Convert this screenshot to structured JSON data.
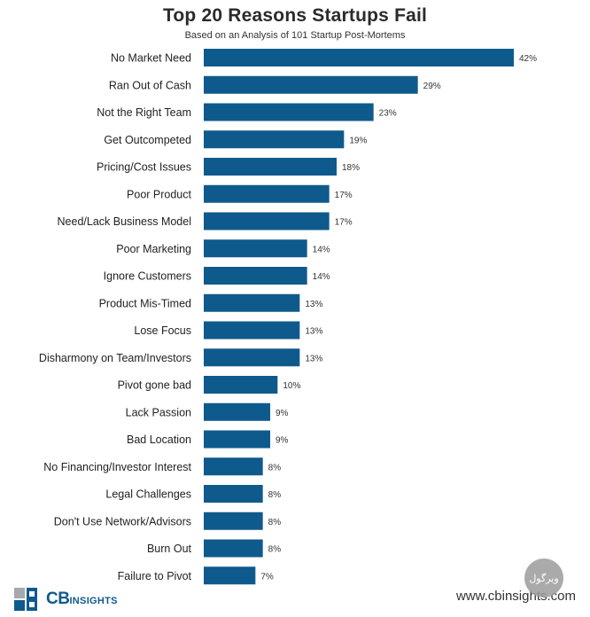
{
  "chart_data": {
    "type": "bar",
    "orientation": "horizontal",
    "title": "Top 20 Reasons Startups Fail",
    "subtitle": "Based on an Analysis of 101 Startup Post-Mortems",
    "categories": [
      "No Market Need",
      "Ran Out of Cash",
      "Not the Right Team",
      "Get Outcompeted",
      "Pricing/Cost Issues",
      "Poor Product",
      "Need/Lack Business Model",
      "Poor Marketing",
      "Ignore Customers",
      "Product Mis-Timed",
      "Lose Focus",
      "Disharmony on Team/Investors",
      "Pivot gone bad",
      "Lack Passion",
      "Bad Location",
      "No Financing/Investor Interest",
      "Legal Challenges",
      "Don't Use Network/Advisors",
      "Burn Out",
      "Failure to Pivot"
    ],
    "values": [
      42,
      29,
      23,
      19,
      18,
      17,
      17,
      14,
      14,
      13,
      13,
      13,
      10,
      9,
      9,
      8,
      8,
      8,
      8,
      7
    ],
    "value_labels": [
      "42%",
      "29%",
      "23%",
      "19%",
      "18%",
      "17%",
      "17%",
      "14%",
      "14%",
      "13%",
      "13%",
      "13%",
      "10%",
      "9%",
      "9%",
      "8%",
      "8%",
      "8%",
      "8%",
      "7%"
    ],
    "xlim": [
      0,
      42
    ],
    "bar_color": "#0f5a8c",
    "grid": false,
    "xlabel": "",
    "ylabel": ""
  },
  "branding": {
    "logo_cb": "CB",
    "logo_insights": "INSIGHTS",
    "website": "www.cbinsights.com",
    "watermark": "ویرگول"
  },
  "colors": {
    "logo_blue": "#0f5a8c",
    "logo_gray": "#a7a9ac"
  }
}
